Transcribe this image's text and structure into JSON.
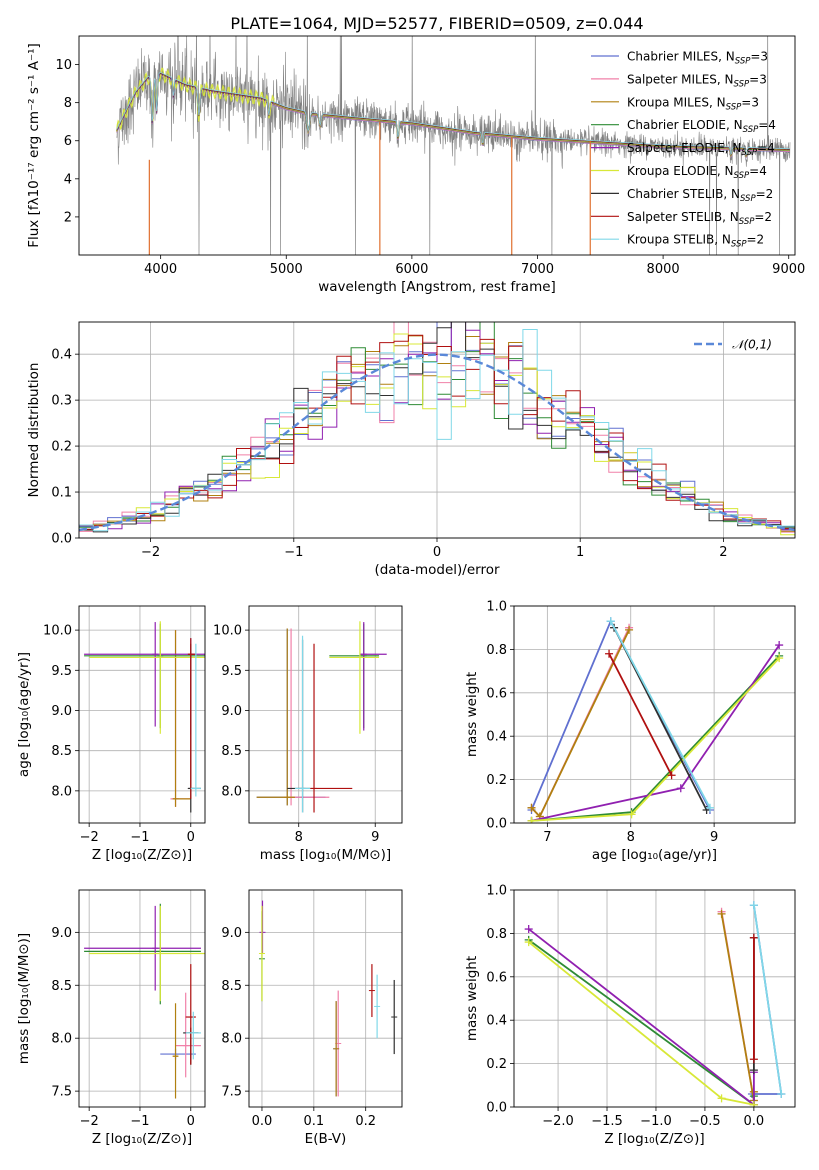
{
  "figure_title": "PLATE=1064, MJD=52577, FIBERID=0509, z=0.044",
  "colors": [
    "#6070d0",
    "#f080a8",
    "#b08010",
    "#2e8b35",
    "#9020b0",
    "#d8e838",
    "#303030",
    "#b01010",
    "#80d8e8"
  ],
  "bestfit_color": "#e07030",
  "data_color": "#808080",
  "gauss_color": "#5a88d8",
  "chart_data": [
    {
      "type": "line",
      "id": "spectrum",
      "title": "PLATE=1064, MJD=52577, FIBERID=0509, z=0.044",
      "xlabel": "wavelength [Angstrom, rest frame]",
      "ylabel": "Flux [fλ10⁻¹⁷ erg cm⁻² s⁻¹ A⁻¹]",
      "xlim": [
        3350,
        9050
      ],
      "ylim": [
        0,
        11.5
      ],
      "xticks": [
        4000,
        5000,
        6000,
        7000,
        8000,
        9000
      ],
      "yticks": [
        2,
        4,
        6,
        8,
        10
      ],
      "grid": false,
      "legend_position": "top-right",
      "continuum": {
        "x": [
          3650,
          3700,
          3800,
          3900,
          4000,
          4100,
          4200,
          4400,
          4600,
          4800,
          5000,
          5200,
          5500,
          6000,
          6500,
          7000,
          7500,
          8000,
          8500,
          9000
        ],
        "y": [
          6.5,
          7.2,
          8.5,
          9.3,
          9.5,
          9.2,
          8.9,
          8.6,
          8.4,
          8.2,
          7.7,
          7.4,
          7.2,
          6.9,
          6.4,
          6.1,
          5.9,
          5.7,
          5.6,
          5.5
        ]
      },
      "series": [
        {
          "name": "Chabrier MILES, N_SSP=3"
        },
        {
          "name": "Salpeter MILES, N_SSP=3"
        },
        {
          "name": "Kroupa MILES, N_SSP=3"
        },
        {
          "name": "Chabrier ELODIE, N_SSP=4"
        },
        {
          "name": "Salpeter ELODIE, N_SSP=4"
        },
        {
          "name": "Kroupa ELODIE, N_SSP=4"
        },
        {
          "name": "Chabrier STELIB, N_SSP=2"
        },
        {
          "name": "Salpeter STELIB, N_SSP=2"
        },
        {
          "name": "Kroupa STELIB, N_SSP=2"
        }
      ]
    },
    {
      "type": "step",
      "id": "residuals",
      "xlabel": "(data-model)/error",
      "ylabel": "Normed distribution",
      "xlim": [
        -2.5,
        2.5
      ],
      "ylim": [
        0,
        0.47
      ],
      "xticks": [
        -2,
        -1,
        0,
        1,
        2
      ],
      "yticks": [
        0.0,
        0.1,
        0.2,
        0.3,
        0.4
      ],
      "grid": true,
      "legend_position": "top-right",
      "gaussian_label": "𝒩(0,1)",
      "bin_width": 0.1,
      "bin_start": -2.5
    },
    {
      "type": "errorbar",
      "id": "age_vs_Z",
      "xlabel": "Z [log₁₀(Z/Z⊙)]",
      "ylabel": "age  [log₁₀(age/yr)]",
      "xlim": [
        -2.2,
        0.28
      ],
      "ylim": [
        7.6,
        10.3
      ],
      "xticks": [
        -2,
        -1,
        0
      ],
      "yticks": [
        8.0,
        8.5,
        9.0,
        9.5,
        10.0
      ],
      "grid": true,
      "points": [
        {
          "c": 0,
          "x": 0.0,
          "y": 9.7,
          "xerr": [
            0.05,
            0.1
          ],
          "yerr": [
            1.0,
            0.2
          ]
        },
        {
          "c": 1,
          "x": -0.3,
          "y": 7.9,
          "xerr": [
            0.1,
            0.3
          ],
          "yerr": [
            0.1,
            2.1
          ]
        },
        {
          "c": 2,
          "x": -0.3,
          "y": 7.9,
          "xerr": [
            0.05,
            0.3
          ],
          "yerr": [
            0.1,
            2.1
          ]
        },
        {
          "c": 3,
          "x": -0.6,
          "y": 9.68,
          "xerr": [
            1.5,
            0.9
          ],
          "yerr": [
            0.9,
            0.4
          ]
        },
        {
          "c": 4,
          "x": -0.7,
          "y": 9.7,
          "xerr": [
            1.4,
            1.0
          ],
          "yerr": [
            0.9,
            0.4
          ]
        },
        {
          "c": 5,
          "x": -0.6,
          "y": 9.66,
          "xerr": [
            1.4,
            0.9
          ],
          "yerr": [
            0.95,
            0.45
          ]
        },
        {
          "c": 6,
          "x": 0.0,
          "y": 8.03,
          "xerr": [
            0.05,
            0.2
          ],
          "yerr": [
            0.3,
            1.8
          ]
        },
        {
          "c": 7,
          "x": 0.0,
          "y": 9.7,
          "xerr": [
            0.05,
            0.1
          ],
          "yerr": [
            1.8,
            0.2
          ]
        },
        {
          "c": 8,
          "x": 0.1,
          "y": 8.03,
          "xerr": [
            0.1,
            0.1
          ],
          "yerr": [
            0.1,
            1.8
          ]
        }
      ]
    },
    {
      "type": "errorbar",
      "id": "age_vs_mass",
      "xlabel": "mass [log₁₀(M/M⊙)]",
      "ylabel": "",
      "xlim": [
        7.35,
        9.35
      ],
      "ylim": [
        7.6,
        10.3
      ],
      "xticks": [
        8,
        9
      ],
      "yticks": [
        8.0,
        8.5,
        9.0,
        9.5,
        10.0
      ],
      "grid": true,
      "points": [
        {
          "c": 0,
          "x": 7.85,
          "y": 7.92,
          "xerr": [
            0.4,
            0.5
          ],
          "yerr": [
            0.1,
            2.1
          ]
        },
        {
          "c": 1,
          "x": 7.9,
          "y": 7.92,
          "xerr": [
            0.1,
            0.5
          ],
          "yerr": [
            0.1,
            2.1
          ]
        },
        {
          "c": 2,
          "x": 7.85,
          "y": 7.92,
          "xerr": [
            0.4,
            0.1
          ],
          "yerr": [
            0.1,
            2.1
          ]
        },
        {
          "c": 3,
          "x": 8.85,
          "y": 9.68,
          "xerr": [
            0.45,
            0.2
          ],
          "yerr": [
            0.9,
            0.4
          ]
        },
        {
          "c": 4,
          "x": 8.85,
          "y": 9.7,
          "xerr": [
            0.05,
            0.3
          ],
          "yerr": [
            0.95,
            0.4
          ]
        },
        {
          "c": 5,
          "x": 8.8,
          "y": 9.66,
          "xerr": [
            0.4,
            0.25
          ],
          "yerr": [
            0.95,
            0.45
          ]
        },
        {
          "c": 6,
          "x": 8.05,
          "y": 8.03,
          "xerr": [
            0.2,
            0.1
          ],
          "yerr": [
            0.3,
            1.85
          ]
        },
        {
          "c": 7,
          "x": 8.2,
          "y": 8.03,
          "xerr": [
            0.05,
            0.5
          ],
          "yerr": [
            0.3,
            1.8
          ]
        },
        {
          "c": 8,
          "x": 8.05,
          "y": 8.03,
          "xerr": [
            0.1,
            0.1
          ],
          "yerr": [
            0.3,
            1.9
          ]
        }
      ]
    },
    {
      "type": "line",
      "id": "massweight_vs_age",
      "xlabel": "age  [log₁₀(age/yr)]",
      "ylabel": "mass weight",
      "xlim": [
        6.6,
        9.97
      ],
      "ylim": [
        0,
        1
      ],
      "xticks": [
        7,
        8,
        9
      ],
      "yticks": [
        0.0,
        0.2,
        0.4,
        0.6,
        0.8,
        1.0
      ],
      "grid": true,
      "series": [
        {
          "c": 0,
          "x": [
            6.81,
            7.76,
            8.95
          ],
          "y": [
            0.06,
            0.93,
            0.06
          ]
        },
        {
          "c": 1,
          "x": [
            6.81,
            6.91,
            7.98
          ],
          "y": [
            0.07,
            0.03,
            0.9
          ]
        },
        {
          "c": 2,
          "x": [
            6.81,
            6.91,
            7.98
          ],
          "y": [
            0.07,
            0.03,
            0.89
          ]
        },
        {
          "c": 3,
          "x": [
            6.81,
            8.01,
            9.78
          ],
          "y": [
            0.01,
            0.05,
            0.77
          ]
        },
        {
          "c": 4,
          "x": [
            6.81,
            8.6,
            9.78
          ],
          "y": [
            0.01,
            0.16,
            0.82
          ]
        },
        {
          "c": 5,
          "x": [
            6.81,
            8.01,
            9.78
          ],
          "y": [
            0.01,
            0.04,
            0.76
          ]
        },
        {
          "c": 6,
          "x": [
            7.8,
            8.91
          ],
          "y": [
            0.9,
            0.06
          ]
        },
        {
          "c": 7,
          "x": [
            7.74,
            8.49
          ],
          "y": [
            0.78,
            0.22
          ]
        },
        {
          "c": 8,
          "x": [
            7.76,
            8.95
          ],
          "y": [
            0.93,
            0.07
          ]
        }
      ]
    },
    {
      "type": "errorbar",
      "id": "mass_vs_Z",
      "xlabel": "Z [log₁₀(Z/Z⊙)]",
      "ylabel": "mass [log₁₀(M/M⊙)]",
      "xlim": [
        -2.2,
        0.28
      ],
      "ylim": [
        7.35,
        9.4
      ],
      "xticks": [
        -2,
        -1,
        0
      ],
      "yticks": [
        7.5,
        8.0,
        8.5,
        9.0
      ],
      "grid": true,
      "points": [
        {
          "c": 0,
          "x": -0.3,
          "y": 7.85,
          "xerr": [
            0.3,
            0.4
          ],
          "yerr": [
            0.05,
            0.05
          ]
        },
        {
          "c": 1,
          "x": -0.1,
          "y": 7.93,
          "xerr": [
            0.2,
            0.3
          ],
          "yerr": [
            0.3,
            0.5
          ]
        },
        {
          "c": 2,
          "x": -0.3,
          "y": 7.83,
          "xerr": [
            0.05,
            0.05
          ],
          "yerr": [
            0.4,
            0.5
          ]
        },
        {
          "c": 3,
          "x": -0.6,
          "y": 8.82,
          "xerr": [
            1.5,
            0.8
          ],
          "yerr": [
            0.5,
            0.45
          ]
        },
        {
          "c": 4,
          "x": -0.7,
          "y": 8.85,
          "xerr": [
            1.4,
            0.9
          ],
          "yerr": [
            0.4,
            0.4
          ]
        },
        {
          "c": 5,
          "x": -0.6,
          "y": 8.8,
          "xerr": [
            1.4,
            0.9
          ],
          "yerr": [
            0.45,
            0.45
          ]
        },
        {
          "c": 6,
          "x": 0.0,
          "y": 8.05,
          "xerr": [
            0.15,
            0.15
          ],
          "yerr": [
            0.3,
            0.05
          ]
        },
        {
          "c": 7,
          "x": 0.0,
          "y": 8.2,
          "xerr": [
            0.1,
            0.1
          ],
          "yerr": [
            0.45,
            0.5
          ]
        },
        {
          "c": 8,
          "x": 0.05,
          "y": 8.05,
          "xerr": [
            0.15,
            0.15
          ],
          "yerr": [
            0.25,
            0.2
          ]
        }
      ]
    },
    {
      "type": "errorbar",
      "id": "mass_vs_ebv",
      "xlabel": "E(B-V)",
      "ylabel": "",
      "xlim": [
        -0.025,
        0.27
      ],
      "ylim": [
        7.35,
        9.4
      ],
      "xticks": [
        0.0,
        0.1,
        0.2
      ],
      "yticks": [
        7.5,
        8.0,
        8.5,
        9.0
      ],
      "grid": true,
      "points": [
        {
          "c": 0,
          "x": 0.143,
          "y": 7.9,
          "xerr": [
            0,
            0
          ],
          "yerr": [
            0.45,
            0.45
          ]
        },
        {
          "c": 1,
          "x": 0.147,
          "y": 7.95,
          "xerr": [
            0,
            0
          ],
          "yerr": [
            0.5,
            0.5
          ]
        },
        {
          "c": 2,
          "x": 0.143,
          "y": 7.9,
          "xerr": [
            0,
            0
          ],
          "yerr": [
            0.45,
            0.45
          ]
        },
        {
          "c": 3,
          "x": 0.0,
          "y": 8.75,
          "xerr": [
            0,
            0
          ],
          "yerr": [
            0.4,
            0.45
          ]
        },
        {
          "c": 4,
          "x": 0.001,
          "y": 9.0,
          "xerr": [
            0,
            0
          ],
          "yerr": [
            0.2,
            0.3
          ]
        },
        {
          "c": 5,
          "x": 0.0,
          "y": 8.8,
          "xerr": [
            0,
            0
          ],
          "yerr": [
            0.45,
            0.45
          ]
        },
        {
          "c": 6,
          "x": 0.255,
          "y": 8.2,
          "xerr": [
            0,
            0
          ],
          "yerr": [
            0.35,
            0.35
          ]
        },
        {
          "c": 7,
          "x": 0.212,
          "y": 8.45,
          "xerr": [
            0,
            0
          ],
          "yerr": [
            0.25,
            0.25
          ]
        },
        {
          "c": 8,
          "x": 0.222,
          "y": 8.3,
          "xerr": [
            0,
            0
          ],
          "yerr": [
            0.3,
            0.3
          ]
        }
      ]
    },
    {
      "type": "line",
      "id": "massweight_vs_Z",
      "xlabel": "Z [log₁₀(Z/Z⊙)]",
      "ylabel": "mass weight",
      "xlim": [
        -2.45,
        0.42
      ],
      "ylim": [
        0,
        1
      ],
      "xticks": [
        -2.0,
        -1.5,
        -1.0,
        -0.5,
        0.0
      ],
      "yticks": [
        0.0,
        0.2,
        0.4,
        0.6,
        0.8,
        1.0
      ],
      "grid": true,
      "series": [
        {
          "c": 0,
          "x": [
            -0.02,
            0.28,
            0.0
          ],
          "y": [
            0.06,
            0.06,
            0.93
          ]
        },
        {
          "c": 1,
          "x": [
            -0.33,
            0.0,
            0.0
          ],
          "y": [
            0.9,
            0.03,
            0.07
          ]
        },
        {
          "c": 2,
          "x": [
            -0.33,
            0.0,
            0.0
          ],
          "y": [
            0.89,
            0.03,
            0.07
          ]
        },
        {
          "c": 3,
          "x": [
            -2.3,
            0.0,
            0.0
          ],
          "y": [
            0.77,
            0.01,
            0.05
          ]
        },
        {
          "c": 4,
          "x": [
            -2.3,
            0.0,
            0.0
          ],
          "y": [
            0.82,
            0.01,
            0.16
          ]
        },
        {
          "c": 5,
          "x": [
            -2.3,
            -0.33,
            0.0
          ],
          "y": [
            0.76,
            0.04,
            0.01
          ]
        },
        {
          "c": 6,
          "x": [
            0.0,
            0.0
          ],
          "y": [
            0.78,
            0.17
          ]
        },
        {
          "c": 7,
          "x": [
            0.0,
            0.0
          ],
          "y": [
            0.78,
            0.22
          ]
        },
        {
          "c": 8,
          "x": [
            0.0,
            0.28
          ],
          "y": [
            0.93,
            0.06
          ]
        }
      ]
    }
  ]
}
